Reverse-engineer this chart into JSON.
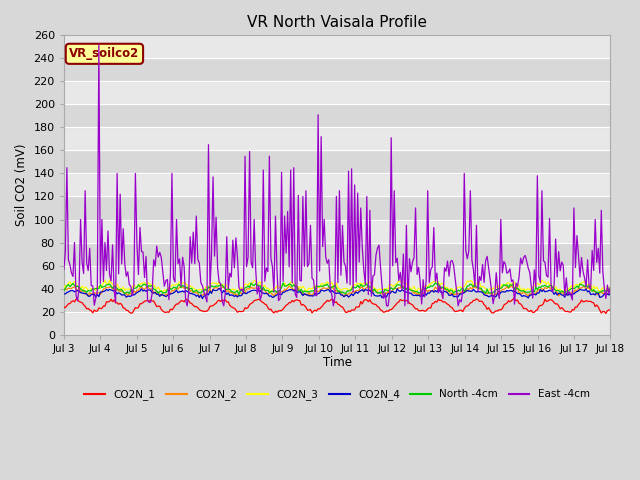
{
  "title": "VR North Vaisala Profile",
  "ylabel": "Soil CO2 (mV)",
  "xlabel": "Time",
  "annotation": "VR_soilco2",
  "ylim": [
    0,
    260
  ],
  "xlim": [
    0,
    360
  ],
  "x_tick_labels": [
    "Jul 3",
    "Jul 4",
    "Jul 5",
    "Jul 6",
    "Jul 7",
    "Jul 8",
    "Jul 9",
    "Jul 10",
    "Jul 11",
    "Jul 12",
    "Jul 13",
    "Jul 14",
    "Jul 15",
    "Jul 16",
    "Jul 17",
    "Jul 18"
  ],
  "x_tick_positions": [
    0,
    24,
    48,
    72,
    96,
    120,
    144,
    168,
    192,
    216,
    240,
    264,
    288,
    312,
    336,
    360
  ],
  "fig_bg_color": "#d8d8d8",
  "plot_bg_color": "#e8e8e8",
  "band_colors": [
    "#e0e0e0",
    "#d0d0d0"
  ],
  "gridline_color": "#ffffff",
  "legend_labels": [
    "CO2N_1",
    "CO2N_2",
    "CO2N_3",
    "CO2N_4",
    "North -4cm",
    "East -4cm"
  ],
  "legend_colors": [
    "#ff0000",
    "#ff8800",
    "#ffff00",
    "#0000cc",
    "#00cc00",
    "#9900cc"
  ],
  "yticks": [
    0,
    20,
    40,
    60,
    80,
    100,
    120,
    140,
    160,
    180,
    200,
    220,
    240,
    260
  ]
}
